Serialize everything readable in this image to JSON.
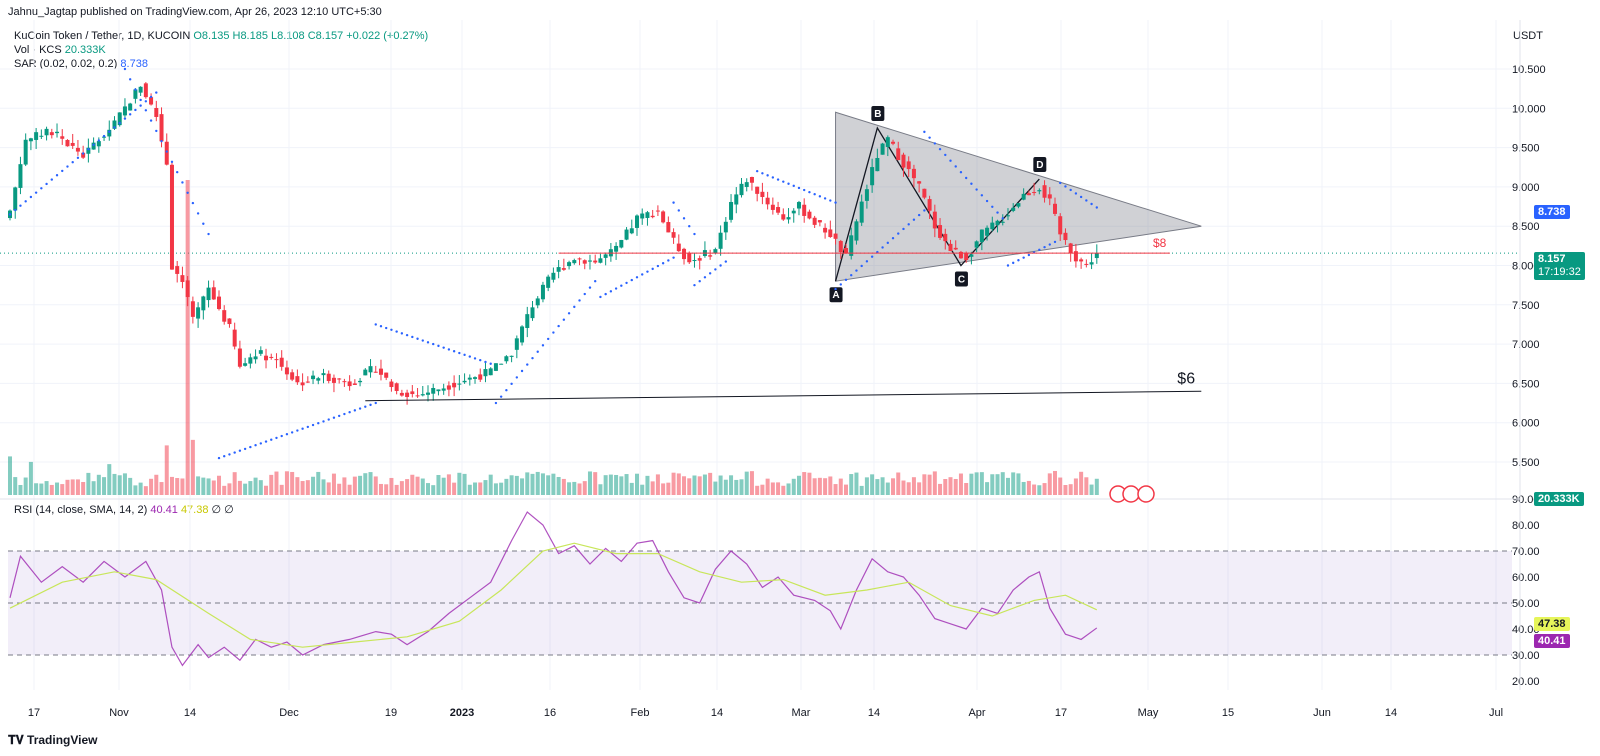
{
  "publish_line": "Jahnu_Jagtap published on TradingView.com, Apr 26, 2023 12:10 UTC+5:30",
  "legend": {
    "symbol": "KuCoin Token / Tether, 1D, KUCOIN",
    "ohlc": "O8.135 H8.185 L8.108 C8.157 +0.022 (+0.27%)",
    "volume": "Vol · KCS",
    "volume_value": "20.333K",
    "sar": "SAR (0.02, 0.02, 0.2)",
    "sar_value": "8.738",
    "rsi": "RSI (14, close, SMA, 14, 2)",
    "rsi_value": "40.41",
    "rsi_ma_value": "47.38",
    "rsi_extra": "∅ ∅"
  },
  "currency": "USDT",
  "branding": "TradingView",
  "price_tags": {
    "sar": "8.738",
    "last": "8.157",
    "countdown": "17:19:32",
    "volume": "20.333K",
    "rsi_ma": "47.38",
    "rsi": "40.41"
  },
  "colors": {
    "up": "#089981",
    "down": "#f23645",
    "sar": "#2962ff",
    "rsi": "#9c27b0",
    "rsi_ma": "#c8e65a",
    "band": "#7e57c2"
  },
  "chart_data": [
    {
      "type": "candlestick",
      "title": "KuCoin Token / Tether, 1D, KUCOIN",
      "ylabel": "USDT",
      "ylim": [
        5.2,
        10.9
      ],
      "y_ticks": [
        "10.500",
        "10.000",
        "9.500",
        "9.000",
        "8.500",
        "8.000",
        "7.500",
        "7.000",
        "6.500",
        "6.000",
        "5.500"
      ],
      "x_ticks": [
        "17",
        "Nov",
        "14",
        "Dec",
        "19",
        "2023",
        "16",
        "Feb",
        "14",
        "Mar",
        "14",
        "Apr",
        "17",
        "May",
        "15",
        "Jun",
        "14",
        "Jul"
      ],
      "path_points": [
        {
          "d": 0,
          "p": 8.7
        },
        {
          "d": 3,
          "p": 9.6
        },
        {
          "d": 8,
          "p": 9.7
        },
        {
          "d": 14,
          "p": 9.4
        },
        {
          "d": 20,
          "p": 9.8
        },
        {
          "d": 25,
          "p": 10.3
        },
        {
          "d": 28,
          "p": 9.9
        },
        {
          "d": 30,
          "p": 9.3
        },
        {
          "d": 31,
          "p": 8.0
        },
        {
          "d": 33,
          "p": 7.8
        },
        {
          "d": 35,
          "p": 7.3
        },
        {
          "d": 38,
          "p": 7.7
        },
        {
          "d": 42,
          "p": 7.2
        },
        {
          "d": 44,
          "p": 6.7
        },
        {
          "d": 47,
          "p": 6.9
        },
        {
          "d": 51,
          "p": 6.8
        },
        {
          "d": 55,
          "p": 6.5
        },
        {
          "d": 60,
          "p": 6.6
        },
        {
          "d": 65,
          "p": 6.5
        },
        {
          "d": 70,
          "p": 6.7
        },
        {
          "d": 74,
          "p": 6.4
        },
        {
          "d": 78,
          "p": 6.35
        },
        {
          "d": 85,
          "p": 6.5
        },
        {
          "d": 92,
          "p": 6.65
        },
        {
          "d": 96,
          "p": 6.9
        },
        {
          "d": 100,
          "p": 7.5
        },
        {
          "d": 104,
          "p": 7.9
        },
        {
          "d": 108,
          "p": 8.1
        },
        {
          "d": 112,
          "p": 8.05
        },
        {
          "d": 116,
          "p": 8.2
        },
        {
          "d": 120,
          "p": 8.6
        },
        {
          "d": 124,
          "p": 8.7
        },
        {
          "d": 127,
          "p": 8.3
        },
        {
          "d": 130,
          "p": 8.05
        },
        {
          "d": 135,
          "p": 8.2
        },
        {
          "d": 138,
          "p": 8.8
        },
        {
          "d": 141,
          "p": 9.1
        },
        {
          "d": 145,
          "p": 8.8
        },
        {
          "d": 148,
          "p": 8.6
        },
        {
          "d": 151,
          "p": 8.75
        },
        {
          "d": 154,
          "p": 8.55
        },
        {
          "d": 157,
          "p": 8.4
        },
        {
          "d": 160,
          "p": 8.1
        },
        {
          "d": 163,
          "p": 8.8
        },
        {
          "d": 166,
          "p": 9.4
        },
        {
          "d": 168,
          "p": 9.6
        },
        {
          "d": 171,
          "p": 9.3
        },
        {
          "d": 174,
          "p": 9.0
        },
        {
          "d": 177,
          "p": 8.5
        },
        {
          "d": 180,
          "p": 8.2
        },
        {
          "d": 183,
          "p": 8.1
        },
        {
          "d": 186,
          "p": 8.4
        },
        {
          "d": 190,
          "p": 8.6
        },
        {
          "d": 194,
          "p": 8.9
        },
        {
          "d": 197,
          "p": 9.0
        },
        {
          "d": 199,
          "p": 8.8
        },
        {
          "d": 201,
          "p": 8.4
        },
        {
          "d": 204,
          "p": 8.1
        },
        {
          "d": 206,
          "p": 8.0
        },
        {
          "d": 208,
          "p": 8.157
        }
      ],
      "sar_segments": [
        {
          "from": 0,
          "to": 28,
          "start": 8.65,
          "end": 10.2
        },
        {
          "from": 22,
          "to": 38,
          "start": 10.5,
          "end": 8.4
        },
        {
          "from": 40,
          "to": 70,
          "start": 5.55,
          "end": 6.25
        },
        {
          "from": 70,
          "to": 92,
          "start": 7.25,
          "end": 6.75
        },
        {
          "from": 93,
          "to": 112,
          "start": 6.25,
          "end": 7.8
        },
        {
          "from": 113,
          "to": 127,
          "start": 7.6,
          "end": 8.1
        },
        {
          "from": 127,
          "to": 131,
          "start": 8.8,
          "end": 8.4
        },
        {
          "from": 131,
          "to": 137,
          "start": 7.75,
          "end": 8.05
        },
        {
          "from": 143,
          "to": 158,
          "start": 9.2,
          "end": 8.8
        },
        {
          "from": 158,
          "to": 175,
          "start": 7.7,
          "end": 8.7
        },
        {
          "from": 175,
          "to": 190,
          "start": 9.7,
          "end": 8.6
        },
        {
          "from": 191,
          "to": 200,
          "start": 8.0,
          "end": 8.3
        },
        {
          "from": 201,
          "to": 208,
          "start": 9.05,
          "end": 8.738
        }
      ],
      "volume_spikes": [
        {
          "d": 30,
          "v": 0.45
        },
        {
          "d": 34,
          "v": 1.0
        },
        {
          "d": 35,
          "v": 0.5
        },
        {
          "d": 0,
          "v": 0.35
        },
        {
          "d": 4,
          "v": 0.3
        },
        {
          "d": 19,
          "v": 0.28
        }
      ],
      "pattern_points": [
        {
          "label": "A",
          "d": 158,
          "p": 7.8
        },
        {
          "label": "B",
          "d": 166,
          "p": 9.75
        },
        {
          "label": "C",
          "d": 182,
          "p": 8.0
        },
        {
          "label": "D",
          "d": 197,
          "p": 9.1
        }
      ],
      "triangle": {
        "top_start": {
          "d": 158,
          "p": 9.95
        },
        "apex": {
          "d": 228,
          "p": 8.5
        },
        "bottom_start": {
          "d": 158,
          "p": 7.8
        }
      },
      "annotations": [
        {
          "text": "$8",
          "price": 8.157,
          "from": 105,
          "to": 222
        },
        {
          "text": "$6",
          "from": 68,
          "to": 228,
          "p_start": 6.28,
          "p_end": 6.4
        }
      ]
    },
    {
      "type": "line",
      "title": "RSI (14, close, SMA, 14, 2)",
      "ylim": [
        16,
        93
      ],
      "y_ticks": [
        "90.00",
        "80.00",
        "70.00",
        "60.00",
        "50.00",
        "40.00",
        "30.00",
        "20.00"
      ],
      "bands": {
        "upper": 70,
        "middle": 50,
        "lower": 30
      },
      "rsi_points": [
        {
          "d": 0,
          "v": 52
        },
        {
          "d": 2,
          "v": 68
        },
        {
          "d": 6,
          "v": 58
        },
        {
          "d": 10,
          "v": 64
        },
        {
          "d": 14,
          "v": 58
        },
        {
          "d": 18,
          "v": 66
        },
        {
          "d": 22,
          "v": 60
        },
        {
          "d": 26,
          "v": 66
        },
        {
          "d": 29,
          "v": 55
        },
        {
          "d": 31,
          "v": 33
        },
        {
          "d": 33,
          "v": 26
        },
        {
          "d": 36,
          "v": 34
        },
        {
          "d": 38,
          "v": 29
        },
        {
          "d": 41,
          "v": 33
        },
        {
          "d": 44,
          "v": 28
        },
        {
          "d": 47,
          "v": 36
        },
        {
          "d": 50,
          "v": 33
        },
        {
          "d": 53,
          "v": 35
        },
        {
          "d": 56,
          "v": 30
        },
        {
          "d": 60,
          "v": 34
        },
        {
          "d": 65,
          "v": 36
        },
        {
          "d": 70,
          "v": 39
        },
        {
          "d": 73,
          "v": 38
        },
        {
          "d": 76,
          "v": 34
        },
        {
          "d": 80,
          "v": 39
        },
        {
          "d": 84,
          "v": 46
        },
        {
          "d": 88,
          "v": 52
        },
        {
          "d": 92,
          "v": 58
        },
        {
          "d": 96,
          "v": 74
        },
        {
          "d": 99,
          "v": 85
        },
        {
          "d": 102,
          "v": 80
        },
        {
          "d": 105,
          "v": 69
        },
        {
          "d": 108,
          "v": 72
        },
        {
          "d": 111,
          "v": 65
        },
        {
          "d": 114,
          "v": 71
        },
        {
          "d": 117,
          "v": 66
        },
        {
          "d": 120,
          "v": 73
        },
        {
          "d": 123,
          "v": 74
        },
        {
          "d": 126,
          "v": 62
        },
        {
          "d": 129,
          "v": 52
        },
        {
          "d": 132,
          "v": 50
        },
        {
          "d": 135,
          "v": 63
        },
        {
          "d": 138,
          "v": 70
        },
        {
          "d": 141,
          "v": 65
        },
        {
          "d": 144,
          "v": 56
        },
        {
          "d": 147,
          "v": 60
        },
        {
          "d": 150,
          "v": 53
        },
        {
          "d": 154,
          "v": 51
        },
        {
          "d": 157,
          "v": 47
        },
        {
          "d": 159,
          "v": 40
        },
        {
          "d": 162,
          "v": 55
        },
        {
          "d": 165,
          "v": 67
        },
        {
          "d": 168,
          "v": 62
        },
        {
          "d": 171,
          "v": 60
        },
        {
          "d": 174,
          "v": 53
        },
        {
          "d": 177,
          "v": 44
        },
        {
          "d": 180,
          "v": 42
        },
        {
          "d": 183,
          "v": 40
        },
        {
          "d": 186,
          "v": 48
        },
        {
          "d": 189,
          "v": 46
        },
        {
          "d": 192,
          "v": 55
        },
        {
          "d": 195,
          "v": 60
        },
        {
          "d": 197,
          "v": 62
        },
        {
          "d": 199,
          "v": 48
        },
        {
          "d": 202,
          "v": 38
        },
        {
          "d": 205,
          "v": 36
        },
        {
          "d": 208,
          "v": 40.41
        }
      ],
      "ma_points": [
        {
          "d": 0,
          "v": 48
        },
        {
          "d": 10,
          "v": 58
        },
        {
          "d": 20,
          "v": 62
        },
        {
          "d": 28,
          "v": 59
        },
        {
          "d": 38,
          "v": 46
        },
        {
          "d": 46,
          "v": 36
        },
        {
          "d": 56,
          "v": 33
        },
        {
          "d": 66,
          "v": 35
        },
        {
          "d": 76,
          "v": 37
        },
        {
          "d": 86,
          "v": 43
        },
        {
          "d": 94,
          "v": 55
        },
        {
          "d": 102,
          "v": 70
        },
        {
          "d": 108,
          "v": 73
        },
        {
          "d": 116,
          "v": 69
        },
        {
          "d": 124,
          "v": 69
        },
        {
          "d": 132,
          "v": 62
        },
        {
          "d": 140,
          "v": 58
        },
        {
          "d": 148,
          "v": 59
        },
        {
          "d": 156,
          "v": 53
        },
        {
          "d": 164,
          "v": 55
        },
        {
          "d": 172,
          "v": 58
        },
        {
          "d": 180,
          "v": 49
        },
        {
          "d": 188,
          "v": 45
        },
        {
          "d": 196,
          "v": 51
        },
        {
          "d": 202,
          "v": 53
        },
        {
          "d": 208,
          "v": 47.38
        }
      ]
    }
  ]
}
